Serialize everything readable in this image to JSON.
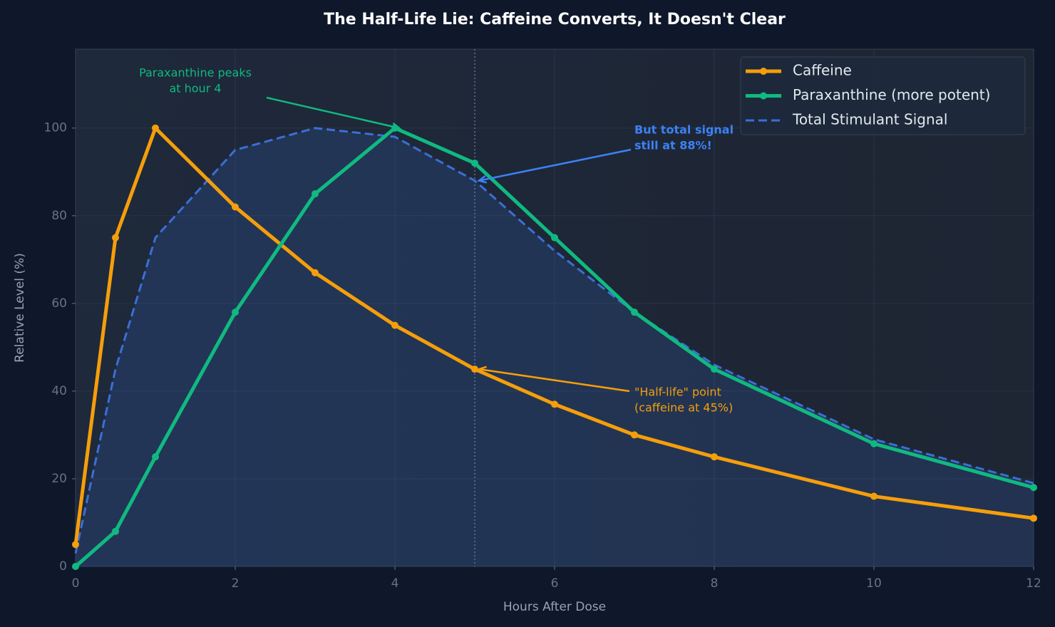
{
  "chart_data": {
    "type": "line",
    "title": "The Half-Life Lie: Caffeine Converts, It Doesn't Clear",
    "x_label": "Hours After Dose",
    "y_label": "Relative Level (%)",
    "x": [
      0,
      0.5,
      1,
      2,
      3,
      4,
      5,
      6,
      7,
      8,
      10,
      12
    ],
    "series": [
      {
        "name": "Caffeine",
        "color": "#f59e0b",
        "markers": true,
        "dashed": false,
        "fill": false,
        "values": [
          5,
          75,
          100,
          82,
          67,
          55,
          45,
          37,
          30,
          25,
          16,
          11
        ]
      },
      {
        "name": "Paraxanthine (more potent)",
        "color": "#10b981",
        "markers": true,
        "dashed": false,
        "fill": false,
        "values": [
          0,
          8,
          25,
          58,
          85,
          100,
          92,
          75,
          58,
          45,
          28,
          18
        ]
      },
      {
        "name": "Total Stimulant Signal",
        "color": "#3b6fd6",
        "markers": false,
        "dashed": true,
        "fill": true,
        "values": [
          3,
          45,
          75,
          95,
          100,
          98,
          88,
          72,
          58,
          46,
          29,
          19
        ]
      }
    ],
    "xlim": [
      0,
      12
    ],
    "ylim": [
      0,
      118
    ],
    "xticks": [
      0,
      2,
      4,
      6,
      8,
      10,
      12
    ],
    "yticks": [
      0,
      20,
      40,
      60,
      80,
      100
    ],
    "grid": true,
    "reference_line_x": 5,
    "legend": "upper right",
    "annotations": [
      {
        "lines": [
          "Paraxanthine peaks",
          "at hour 4"
        ],
        "color": "#10b981"
      },
      {
        "lines": [
          "But total signal",
          "still at 88%!"
        ],
        "color": "#3b82f6"
      },
      {
        "lines": [
          "\"Half-life\" point",
          "(caffeine at 45%)"
        ],
        "color": "#f59e0b"
      }
    ]
  }
}
